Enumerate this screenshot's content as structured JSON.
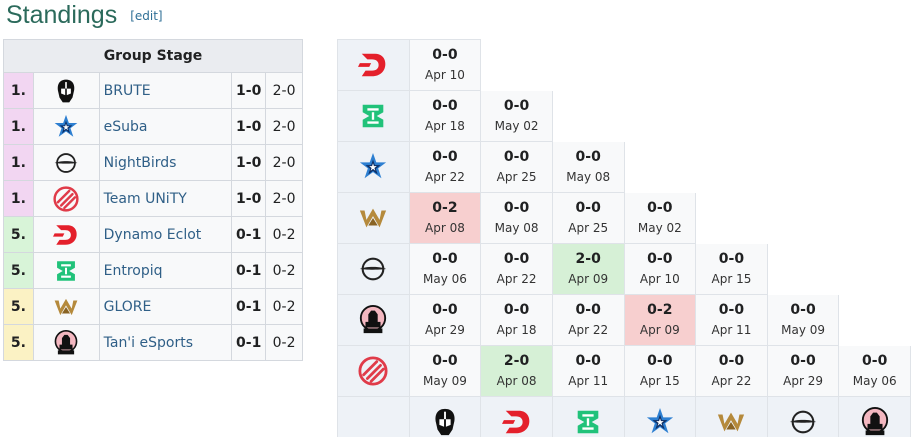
{
  "heading": {
    "title": "Standings",
    "edit": "[edit]"
  },
  "standings": {
    "header": "Group Stage",
    "rows": [
      {
        "rank": "1.",
        "team": "BRUTE",
        "icon": "brute-logo-icon",
        "match": "1-0",
        "games": "2-0",
        "tier": "adv"
      },
      {
        "rank": "1.",
        "team": "eSuba",
        "icon": "esuba-logo-icon",
        "match": "1-0",
        "games": "2-0",
        "tier": "adv"
      },
      {
        "rank": "1.",
        "team": "NightBirds",
        "icon": "nightbirds-logo-icon",
        "match": "1-0",
        "games": "2-0",
        "tier": "adv"
      },
      {
        "rank": "1.",
        "team": "Team UNiTY",
        "icon": "team-unity-logo-icon",
        "match": "1-0",
        "games": "2-0",
        "tier": "adv"
      },
      {
        "rank": "5.",
        "team": "Dynamo Eclot",
        "icon": "dynamo-eclot-logo-icon",
        "match": "0-1",
        "games": "0-2",
        "tier": "up"
      },
      {
        "rank": "5.",
        "team": "Entropiq",
        "icon": "entropiq-logo-icon",
        "match": "0-1",
        "games": "0-2",
        "tier": "up"
      },
      {
        "rank": "5.",
        "team": "GLORE",
        "icon": "glore-logo-icon",
        "match": "0-1",
        "games": "0-2",
        "tier": "low"
      },
      {
        "rank": "5.",
        "team": "Tan'i eSports",
        "icon": "tani-esports-logo-icon",
        "match": "0-1",
        "games": "0-2",
        "tier": "low"
      }
    ]
  },
  "matrix": {
    "rows": [
      {
        "icon": "dynamo-eclot-logo-icon",
        "cells": [
          {
            "score": "0-0",
            "date": "Apr 10",
            "state": ""
          }
        ]
      },
      {
        "icon": "entropiq-logo-icon",
        "cells": [
          {
            "score": "0-0",
            "date": "Apr 18",
            "state": ""
          },
          {
            "score": "0-0",
            "date": "May 02",
            "state": ""
          }
        ]
      },
      {
        "icon": "esuba-logo-icon",
        "cells": [
          {
            "score": "0-0",
            "date": "Apr 22",
            "state": ""
          },
          {
            "score": "0-0",
            "date": "Apr 25",
            "state": ""
          },
          {
            "score": "0-0",
            "date": "May 08",
            "state": ""
          }
        ]
      },
      {
        "icon": "glore-logo-icon",
        "cells": [
          {
            "score": "0-2",
            "date": "Apr 08",
            "state": "loss"
          },
          {
            "score": "0-0",
            "date": "May 08",
            "state": ""
          },
          {
            "score": "0-0",
            "date": "Apr 25",
            "state": ""
          },
          {
            "score": "0-0",
            "date": "May 02",
            "state": ""
          }
        ]
      },
      {
        "icon": "nightbirds-logo-icon",
        "cells": [
          {
            "score": "0-0",
            "date": "May 06",
            "state": ""
          },
          {
            "score": "0-0",
            "date": "Apr 22",
            "state": ""
          },
          {
            "score": "2-0",
            "date": "Apr 09",
            "state": "win"
          },
          {
            "score": "0-0",
            "date": "Apr 10",
            "state": ""
          },
          {
            "score": "0-0",
            "date": "Apr 15",
            "state": ""
          }
        ]
      },
      {
        "icon": "tani-esports-logo-icon",
        "cells": [
          {
            "score": "0-0",
            "date": "Apr 29",
            "state": ""
          },
          {
            "score": "0-0",
            "date": "Apr 18",
            "state": ""
          },
          {
            "score": "0-0",
            "date": "Apr 22",
            "state": ""
          },
          {
            "score": "0-2",
            "date": "Apr 09",
            "state": "loss"
          },
          {
            "score": "0-0",
            "date": "Apr 11",
            "state": ""
          },
          {
            "score": "0-0",
            "date": "May 09",
            "state": ""
          }
        ]
      },
      {
        "icon": "team-unity-logo-icon",
        "cells": [
          {
            "score": "0-0",
            "date": "May 09",
            "state": ""
          },
          {
            "score": "2-0",
            "date": "Apr 08",
            "state": "win"
          },
          {
            "score": "0-0",
            "date": "Apr 11",
            "state": ""
          },
          {
            "score": "0-0",
            "date": "Apr 15",
            "state": ""
          },
          {
            "score": "0-0",
            "date": "Apr 22",
            "state": ""
          },
          {
            "score": "0-0",
            "date": "Apr 29",
            "state": ""
          },
          {
            "score": "0-0",
            "date": "May 06",
            "state": ""
          }
        ]
      }
    ],
    "columns": [
      "brute-logo-icon",
      "dynamo-eclot-logo-icon",
      "entropiq-logo-icon",
      "esuba-logo-icon",
      "glore-logo-icon",
      "nightbirds-logo-icon",
      "tani-esports-logo-icon"
    ]
  },
  "colors": {
    "accent": "#2b6a5b",
    "link": "#2f5f87",
    "win": "#d6f0d6",
    "loss": "#f7cfcf",
    "advance": "#f2d6f2",
    "upper": "#d8f4d8",
    "lower": "#fbf2c4"
  }
}
